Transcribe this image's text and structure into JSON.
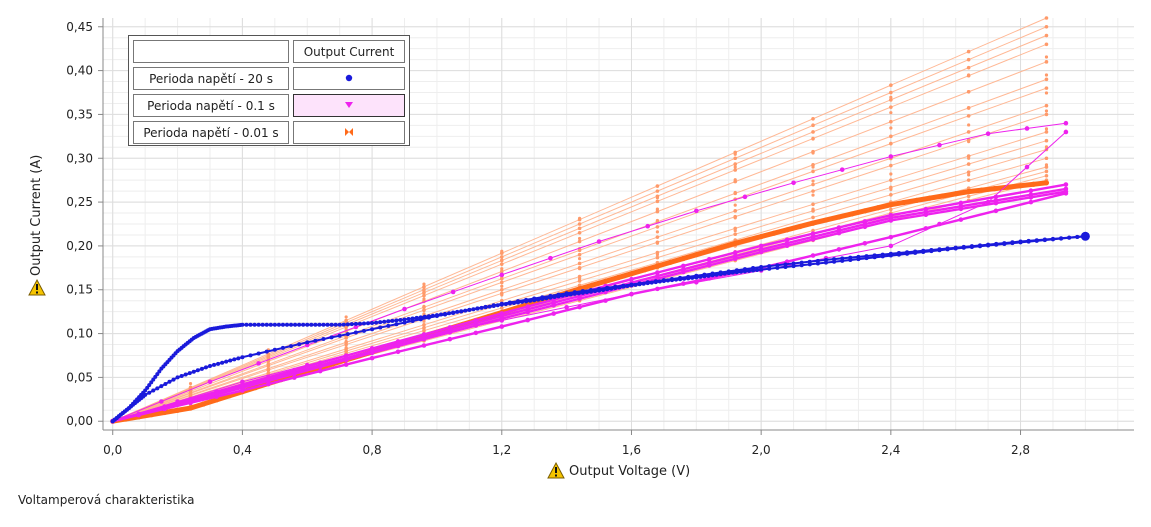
{
  "footer": {
    "caption": "Voltamperová charakteristika"
  },
  "legend": {
    "header_blank": "",
    "header_title": "Output Current"
  },
  "chart_data": {
    "type": "scatter",
    "title": "",
    "xlabel": "Output Voltage (V)",
    "ylabel": "Output Current (A)",
    "xlim": [
      -0.03,
      3.15
    ],
    "ylim": [
      -0.01,
      0.46
    ],
    "xticks": [
      "0,0",
      "0,4",
      "0,8",
      "1,2",
      "1,6",
      "2,0",
      "2,4",
      "2,8"
    ],
    "yticks": [
      "0,00",
      "0,05",
      "0,10",
      "0,15",
      "0,20",
      "0,25",
      "0,30",
      "0,35",
      "0,40",
      "0,45"
    ],
    "grid": true,
    "legend_position": "top-left",
    "series": [
      {
        "name": "Perioda napětí - 20 s",
        "color": "#1a1adb",
        "marker": "circle",
        "rise": [
          [
            0.0,
            0.0
          ],
          [
            0.05,
            0.015
          ],
          [
            0.1,
            0.035
          ],
          [
            0.15,
            0.06
          ],
          [
            0.2,
            0.08
          ],
          [
            0.25,
            0.095
          ],
          [
            0.3,
            0.105
          ],
          [
            0.35,
            0.108
          ],
          [
            0.4,
            0.11
          ],
          [
            0.5,
            0.11
          ],
          [
            0.6,
            0.11
          ],
          [
            0.7,
            0.11
          ],
          [
            0.8,
            0.112
          ],
          [
            0.9,
            0.116
          ],
          [
            1.0,
            0.121
          ],
          [
            1.1,
            0.127
          ],
          [
            1.2,
            0.133
          ],
          [
            1.3,
            0.138
          ],
          [
            1.4,
            0.144
          ],
          [
            1.5,
            0.149
          ],
          [
            1.6,
            0.155
          ],
          [
            1.7,
            0.16
          ],
          [
            1.8,
            0.164
          ],
          [
            1.9,
            0.169
          ],
          [
            2.0,
            0.173
          ],
          [
            2.2,
            0.181
          ],
          [
            2.4,
            0.189
          ],
          [
            2.6,
            0.197
          ],
          [
            2.8,
            0.204
          ],
          [
            3.0,
            0.211
          ]
        ],
        "fall": [
          [
            3.0,
            0.211
          ],
          [
            2.8,
            0.205
          ],
          [
            2.6,
            0.198
          ],
          [
            2.4,
            0.191
          ],
          [
            2.2,
            0.184
          ],
          [
            2.0,
            0.176
          ],
          [
            1.8,
            0.166
          ],
          [
            1.6,
            0.156
          ],
          [
            1.4,
            0.146
          ],
          [
            1.2,
            0.134
          ],
          [
            1.0,
            0.12
          ],
          [
            0.8,
            0.105
          ],
          [
            0.6,
            0.09
          ],
          [
            0.4,
            0.073
          ],
          [
            0.3,
            0.063
          ],
          [
            0.2,
            0.05
          ],
          [
            0.1,
            0.03
          ],
          [
            0.05,
            0.015
          ],
          [
            0.0,
            0.0
          ]
        ]
      },
      {
        "name": "Perioda napětí - 0.1 s",
        "color": "#ee22ee",
        "marker": "triangle",
        "curves": [
          [
            [
              0.0,
              0.0
            ],
            [
              0.3,
              0.045
            ],
            [
              0.6,
              0.087
            ],
            [
              0.9,
              0.128
            ],
            [
              1.2,
              0.167
            ],
            [
              1.5,
              0.205
            ],
            [
              1.8,
              0.24
            ],
            [
              2.1,
              0.272
            ],
            [
              2.4,
              0.302
            ],
            [
              2.7,
              0.328
            ],
            [
              2.94,
              0.34
            ]
          ],
          [
            [
              0.0,
              0.0
            ],
            [
              0.4,
              0.045
            ],
            [
              0.8,
              0.083
            ],
            [
              1.2,
              0.115
            ],
            [
              1.6,
              0.145
            ],
            [
              2.0,
              0.172
            ],
            [
              2.4,
              0.2
            ],
            [
              2.7,
              0.25
            ],
            [
              2.94,
              0.33
            ]
          ],
          [
            [
              0.0,
              0.0
            ],
            [
              0.4,
              0.042
            ],
            [
              0.8,
              0.083
            ],
            [
              1.2,
              0.123
            ],
            [
              1.6,
              0.162
            ],
            [
              2.0,
              0.2
            ],
            [
              2.4,
              0.235
            ],
            [
              2.94,
              0.27
            ]
          ],
          [
            [
              0.0,
              0.0
            ],
            [
              0.4,
              0.04
            ],
            [
              0.8,
              0.08
            ],
            [
              1.2,
              0.12
            ],
            [
              1.6,
              0.158
            ],
            [
              2.0,
              0.196
            ],
            [
              2.4,
              0.232
            ],
            [
              2.94,
              0.265
            ]
          ],
          [
            [
              0.0,
              0.0
            ],
            [
              0.4,
              0.038
            ],
            [
              0.8,
              0.078
            ],
            [
              1.2,
              0.117
            ],
            [
              1.6,
              0.155
            ],
            [
              2.0,
              0.193
            ],
            [
              2.4,
              0.229
            ],
            [
              2.94,
              0.262
            ]
          ],
          [
            [
              0.0,
              0.0
            ],
            [
              0.4,
              0.035
            ],
            [
              0.8,
              0.072
            ],
            [
              1.2,
              0.108
            ],
            [
              1.6,
              0.145
            ],
            [
              2.0,
              0.175
            ],
            [
              2.4,
              0.21
            ],
            [
              2.94,
              0.26
            ]
          ]
        ]
      },
      {
        "name": "Perioda napětí - 0.01 s",
        "color": "#ff6a1a",
        "marker": "bowtie",
        "fan_end_currents": [
          0.46,
          0.45,
          0.44,
          0.43,
          0.41,
          0.39,
          0.38,
          0.36,
          0.35,
          0.33,
          0.32,
          0.31,
          0.3,
          0.29,
          0.285,
          0.28,
          0.275
        ],
        "x_end": 2.88,
        "main": [
          [
            0.0,
            0.0
          ],
          [
            0.24,
            0.015
          ],
          [
            0.48,
            0.043
          ],
          [
            0.72,
            0.07
          ],
          [
            0.96,
            0.097
          ],
          [
            1.2,
            0.124
          ],
          [
            1.44,
            0.151
          ],
          [
            1.68,
            0.177
          ],
          [
            1.92,
            0.203
          ],
          [
            2.16,
            0.226
          ],
          [
            2.4,
            0.247
          ],
          [
            2.64,
            0.262
          ],
          [
            2.88,
            0.272
          ]
        ]
      }
    ]
  }
}
